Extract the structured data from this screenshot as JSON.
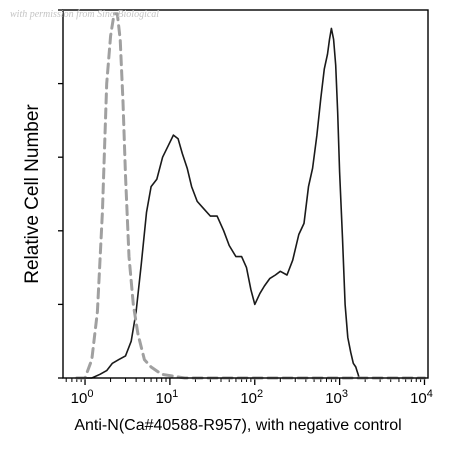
{
  "watermark": "with permission from Sino Biological",
  "chart_data": {
    "type": "line",
    "title": "",
    "xlabel": "Anti-N(Ca#40588-R957), with negative control",
    "ylabel": "Relative Cell Number",
    "x_scale": "log",
    "xlim": [
      0.55,
      11000
    ],
    "ylim": [
      0,
      100
    ],
    "x_ticks": [
      {
        "value": 1,
        "base": "10",
        "exp": "0"
      },
      {
        "value": 10,
        "base": "10",
        "exp": "1"
      },
      {
        "value": 100,
        "base": "10",
        "exp": "2"
      },
      {
        "value": 1000,
        "base": "10",
        "exp": "3"
      },
      {
        "value": 10000,
        "base": "10",
        "exp": "4"
      }
    ],
    "y_tick_values": [
      0,
      20,
      40,
      60,
      80,
      100
    ],
    "grid": false,
    "legend": "none",
    "series": [
      {
        "color": "#1a1a1a",
        "style": "solid",
        "x": [
          0.8,
          1.2,
          1.5,
          1.8,
          2.1,
          2.5,
          3.0,
          3.5,
          4.0,
          4.6,
          5.3,
          6.0,
          7.0,
          8.2,
          9.5,
          11,
          12.5,
          14,
          16,
          18,
          21,
          25,
          30,
          36,
          43,
          50,
          60,
          70,
          80,
          90,
          100,
          115,
          130,
          150,
          175,
          200,
          240,
          280,
          330,
          380,
          430,
          480,
          540,
          600,
          660,
          720,
          760,
          800,
          850,
          900,
          950,
          1000,
          1080,
          1160,
          1250,
          1350,
          1450,
          1550,
          1600,
          1650,
          1700,
          1750
        ],
        "y": [
          0,
          0,
          1,
          2,
          4,
          5,
          6,
          10,
          18,
          31,
          45,
          52,
          54,
          60,
          63,
          66,
          65,
          61,
          57,
          52,
          48,
          46,
          44,
          44,
          40,
          36,
          33,
          33,
          30,
          24,
          20,
          23,
          25,
          27,
          28,
          29,
          28,
          32,
          39,
          42,
          52,
          57,
          66,
          76,
          84,
          88,
          92,
          95,
          92,
          85,
          72,
          56,
          38,
          20,
          11,
          7,
          4,
          3,
          2,
          1,
          0,
          0
        ]
      },
      {
        "color": "#a0a0a0",
        "style": "dashed",
        "x": [
          0.8,
          1.0,
          1.2,
          1.4,
          1.6,
          1.8,
          2.0,
          2.2,
          2.4,
          2.6,
          2.8,
          3.0,
          3.3,
          3.7,
          4.2,
          5.0,
          6.0,
          8.0,
          15,
          50,
          200,
          1000,
          10000
        ],
        "y": [
          0,
          0,
          5,
          18,
          45,
          80,
          93,
          99,
          99,
          92,
          75,
          55,
          33,
          20,
          12,
          5,
          3,
          1,
          0,
          0,
          0,
          0,
          0
        ]
      }
    ]
  }
}
